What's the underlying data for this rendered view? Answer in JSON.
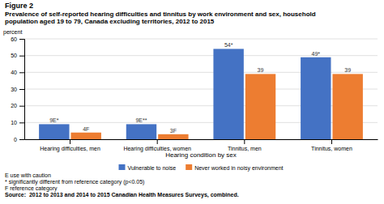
{
  "chart_data": {
    "type": "bar",
    "title": "Figure 2",
    "subtitle": "Prevalence of self-reported hearing difficulties and tinnitus by work environment and sex, household\npopulation aged 19 to 79, Canada excluding territories, 2012 to 2015",
    "xlabel": "Hearing condition by sex",
    "ylabel": "percent",
    "categories": [
      "Hearing difficulties, men",
      "Hearing difficulties, women",
      "Tinnitus, men",
      "Tinnitus, women"
    ],
    "series": [
      {
        "name": "Vulnerable to noise",
        "color": "#4472C4",
        "values": [
          9,
          9,
          54,
          49
        ],
        "value_labels": [
          "9E*",
          "9E**",
          "54*",
          "49*"
        ]
      },
      {
        "name": "Never worked in noisy environment",
        "color": "#ED7D31",
        "values": [
          4,
          3,
          39,
          39
        ],
        "value_labels": [
          "4F",
          "3F",
          "39",
          "39"
        ]
      }
    ],
    "ylim": [
      0,
      60
    ],
    "yticks": [
      0,
      10,
      20,
      30,
      40,
      50,
      60
    ],
    "grid": true,
    "legend": "bottom",
    "data_labels": true,
    "annotations": [
      "E use with caution",
      "* significantly different from reference category (p<0.05)",
      "F reference category",
      "Source:  2012 to 2013 and 2014 to 2015 Canadian Health Measures Surveys, combined."
    ]
  }
}
